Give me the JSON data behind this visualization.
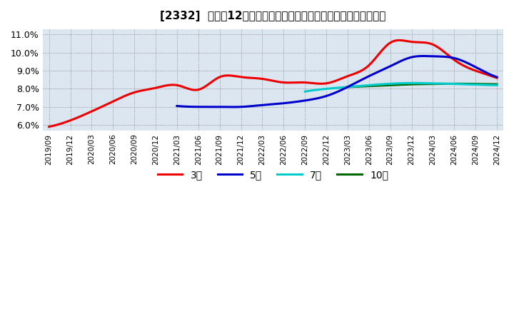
{
  "title": "[2332]  売上高12か月移動合計の対前年同期増減率の平均値の推移",
  "ylim": [
    5.7,
    11.3
  ],
  "yticks": [
    6.0,
    7.0,
    8.0,
    9.0,
    10.0,
    11.0
  ],
  "ytick_labels": [
    "6.0%",
    "7.0%",
    "8.0%",
    "9.0%",
    "10.0%",
    "11.0%"
  ],
  "background_color": "#ffffff",
  "plot_bg_color": "#dce6f1",
  "legend": [
    "3年",
    "5年",
    "7年",
    "10年"
  ],
  "line_colors": [
    "#ee0000",
    "#0000cc",
    "#00cccc",
    "#006600"
  ],
  "x_quarters": [
    "2019/09",
    "2019/12",
    "2020/03",
    "2020/06",
    "2020/09",
    "2020/12",
    "2021/03",
    "2021/06",
    "2021/09",
    "2021/12",
    "2022/03",
    "2022/06",
    "2022/09",
    "2022/12",
    "2023/03",
    "2023/06",
    "2023/09",
    "2023/12",
    "2024/03",
    "2024/06",
    "2024/09",
    "2024/12"
  ],
  "series_3yr_x": [
    0,
    1,
    2,
    3,
    4,
    5,
    6,
    7,
    8,
    9,
    10,
    11,
    12,
    13,
    14,
    15,
    16,
    17,
    18,
    19,
    20,
    21
  ],
  "series_3yr_y": [
    5.9,
    6.25,
    6.75,
    7.3,
    7.8,
    8.05,
    8.2,
    7.95,
    8.65,
    8.65,
    8.55,
    8.35,
    8.35,
    8.3,
    8.7,
    9.3,
    10.55,
    10.6,
    10.45,
    9.6,
    9.0,
    8.6
  ],
  "series_5yr_x": [
    6,
    7,
    8,
    9,
    10,
    11,
    12,
    13,
    14,
    15,
    16,
    17,
    18,
    19,
    20,
    21
  ],
  "series_5yr_y": [
    7.05,
    7.0,
    7.0,
    7.0,
    7.1,
    7.2,
    7.35,
    7.6,
    8.1,
    8.7,
    9.25,
    9.75,
    9.8,
    9.7,
    9.2,
    8.65
  ],
  "series_7yr_x": [
    12,
    13,
    14,
    15,
    16,
    17,
    18,
    19,
    20,
    21
  ],
  "series_7yr_y": [
    7.85,
    8.0,
    8.1,
    8.2,
    8.28,
    8.32,
    8.3,
    8.27,
    8.23,
    8.2
  ],
  "series_10yr_x": [
    14,
    15,
    16,
    17,
    18,
    19,
    20,
    21
  ],
  "series_10yr_y": [
    8.1,
    8.15,
    8.2,
    8.25,
    8.27,
    8.28,
    8.27,
    8.25
  ]
}
